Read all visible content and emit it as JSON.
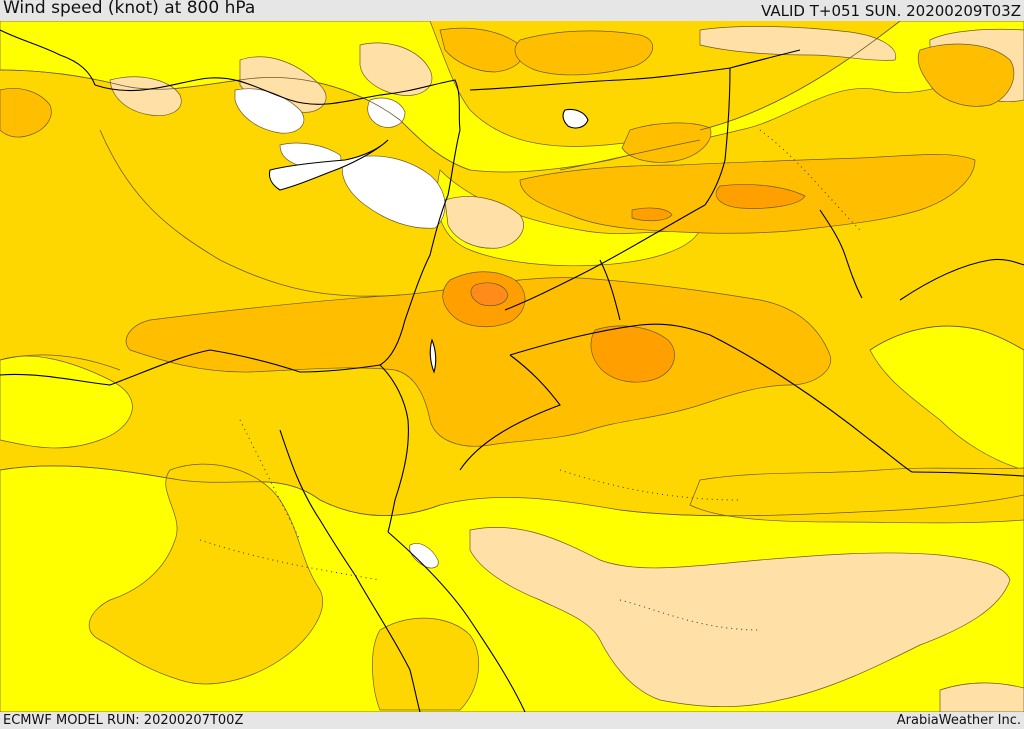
{
  "header": {
    "title": "Wind speed (knot) at 800 hPa",
    "valid": "VALID T+051 SUN. 20200209T03Z"
  },
  "footer": {
    "model_run": "ECMWF MODEL RUN: 20200207T00Z",
    "credit": "ArabiaWeather Inc."
  },
  "colors": {
    "band_white": "#ffffff",
    "band_light": "#ffe0a6",
    "band_yellow": "#ffff00",
    "band_gold": "#ffd700",
    "band_amber": "#ffbe00",
    "band_orange": "#ffa000",
    "band_deep": "#ff8c1a",
    "contour": "#6b5a2e",
    "coast": "#000000"
  }
}
